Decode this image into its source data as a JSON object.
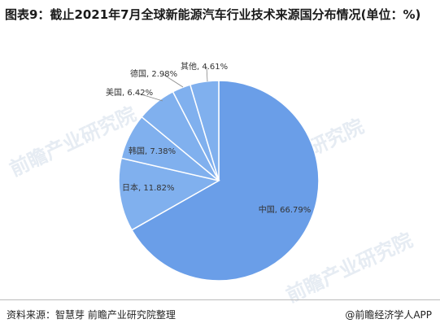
{
  "chart_data": {
    "type": "pie",
    "title": "图表9：截止2021年7月全球新能源汽车行业技术来源国分布情况(单位：%)",
    "values": [
      66.79,
      11.82,
      7.38,
      6.42,
      2.98,
      4.61
    ],
    "value_labels": [
      "中国, 66.79%",
      "日本, 11.82%",
      "韩国, 7.38%",
      "美国, 6.42%",
      "德国, 2.98%",
      "其他, 4.61%"
    ],
    "colors": [
      "#6a9ee8",
      "#80b0ee",
      "#80b0ee",
      "#80b0ee",
      "#80b0ee",
      "#80b0ee"
    ],
    "source": "资料来源：智慧芽 前瞻产业研究院整理",
    "logo": "@前瞻经济学人APP",
    "watermark": "前瞻产业研究院"
  }
}
